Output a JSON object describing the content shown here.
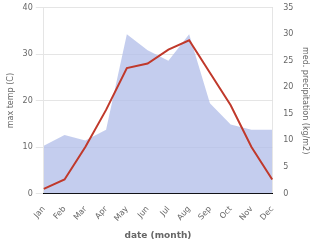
{
  "chart_data": {
    "type": "line",
    "x_label": "date (month)",
    "y_label": "max temp (C)",
    "y2_label": "med. precipitation (kg/m2)",
    "categories": [
      "Jan",
      "Feb",
      "Mar",
      "Apr",
      "May",
      "Jun",
      "Jul",
      "Aug",
      "Sep",
      "Oct",
      "Nov",
      "Dec"
    ],
    "series": [
      {
        "type": "area",
        "axis": "y2",
        "color": "#b0bce8",
        "values": [
          9,
          11,
          10,
          12,
          30,
          27,
          25,
          30,
          17,
          13,
          12,
          12
        ]
      },
      {
        "type": "line",
        "color": "#c0392b",
        "values": [
          1,
          3,
          10,
          18,
          27,
          28,
          31,
          33,
          26,
          19,
          10,
          3
        ]
      }
    ],
    "ylim": [
      0,
      40
    ],
    "yticks": [
      0,
      10,
      20,
      30,
      40
    ],
    "y2lim": [
      0,
      35
    ],
    "y2ticks": [
      0,
      5,
      10,
      15,
      20,
      25,
      30,
      35
    ],
    "grid": true
  }
}
